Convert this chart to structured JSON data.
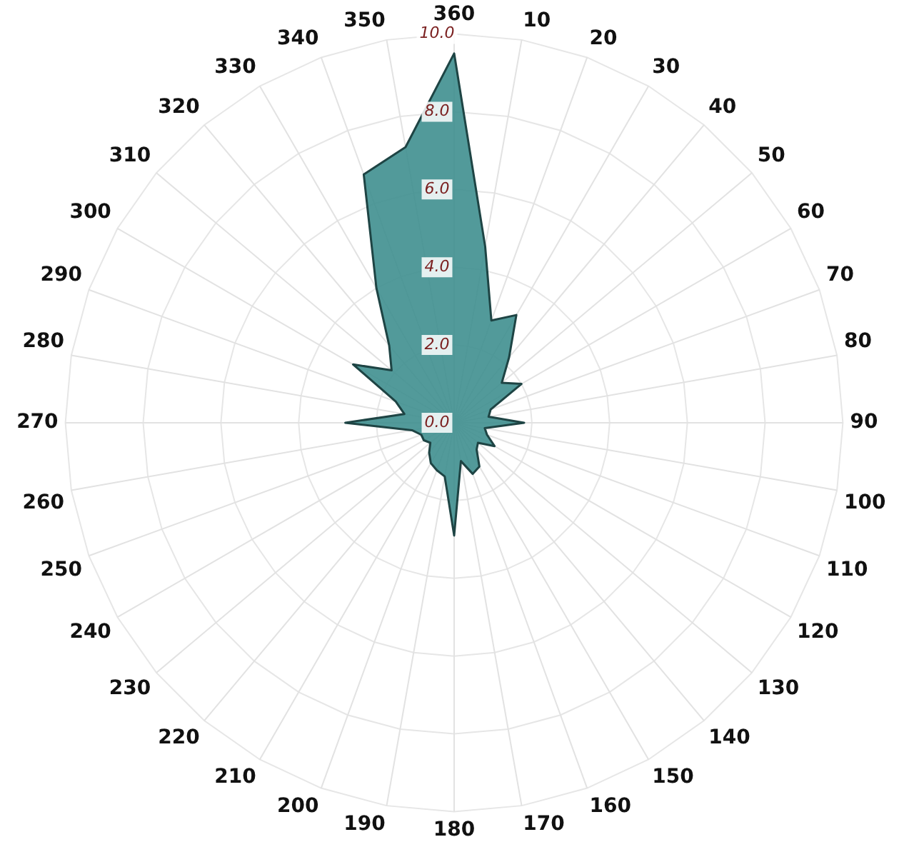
{
  "chart_data": {
    "type": "radar",
    "categories": [
      "360",
      "10",
      "20",
      "30",
      "40",
      "50",
      "60",
      "70",
      "80",
      "90",
      "100",
      "110",
      "120",
      "130",
      "140",
      "150",
      "160",
      "170",
      "180",
      "190",
      "200",
      "210",
      "220",
      "230",
      "240",
      "250",
      "260",
      "270",
      "280",
      "290",
      "300",
      "310",
      "320",
      "330",
      "340",
      "350"
    ],
    "series": [
      {
        "color": "#3f8f8f",
        "values": [
          9.5,
          4.6,
          2.8,
          3.2,
          2.2,
          1.6,
          2.0,
          1.0,
          0.9,
          1.8,
          0.8,
          0.9,
          1.2,
          0.8,
          0.9,
          1.3,
          1.4,
          1.0,
          2.9,
          1.4,
          1.3,
          1.2,
          1.0,
          0.8,
          0.9,
          0.9,
          1.1,
          2.8,
          1.3,
          1.6,
          3.0,
          2.1,
          2.6,
          4.0,
          6.8,
          7.2
        ]
      }
    ],
    "ylim": [
      0,
      10
    ],
    "yticks": [
      {
        "value": 0,
        "label": "0.0"
      },
      {
        "value": 2,
        "label": "2.0"
      },
      {
        "value": 4,
        "label": "4.0"
      },
      {
        "value": 6,
        "label": "6.0"
      },
      {
        "value": 8,
        "label": "8.0"
      },
      {
        "value": 10,
        "label": "10.0"
      }
    ],
    "grid": true,
    "legend": false,
    "marker": "none"
  }
}
